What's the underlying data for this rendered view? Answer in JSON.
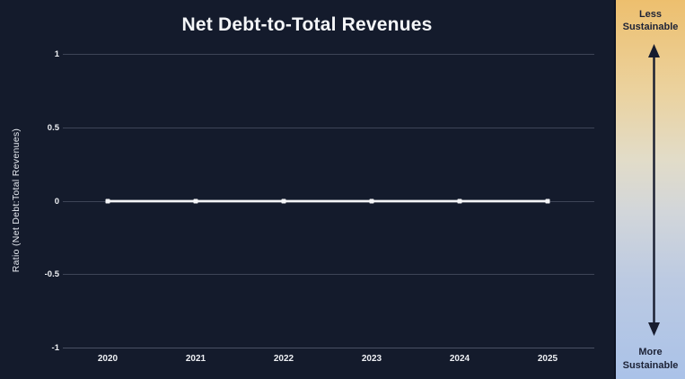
{
  "title": "Net Debt-to-Total Revenues",
  "chart_data": {
    "type": "line",
    "title": "Net Debt-to-Total Revenues",
    "x": [
      2020,
      2021,
      2022,
      2023,
      2024,
      2025
    ],
    "series": [
      {
        "name": "Net Debt-to-Total Revenues",
        "values": [
          0,
          0,
          0,
          0,
          0,
          0
        ]
      }
    ],
    "xlabel": "",
    "ylabel": "Ratio (Net Debt:Total Revenues)",
    "ylim": [
      -1,
      1
    ],
    "yticks": [
      1,
      0.5,
      0,
      -0.5,
      -1
    ],
    "ytick_labels": [
      "1",
      "0.5",
      "0",
      "-0.5",
      "-1"
    ],
    "grid": true,
    "legend": "none",
    "line_color": "#f4f5f7",
    "marker": "square",
    "background_color": "#141b2c",
    "gridline_color": "#3e4557"
  },
  "sidebar": {
    "top_label": "Less Sustainable",
    "bottom_label": "More Sustainable",
    "gradient_top_color": "#edbf6e",
    "gradient_bottom_color": "#aac2e8",
    "arrow_color": "#171c2e",
    "label_color": "#1c2236"
  }
}
